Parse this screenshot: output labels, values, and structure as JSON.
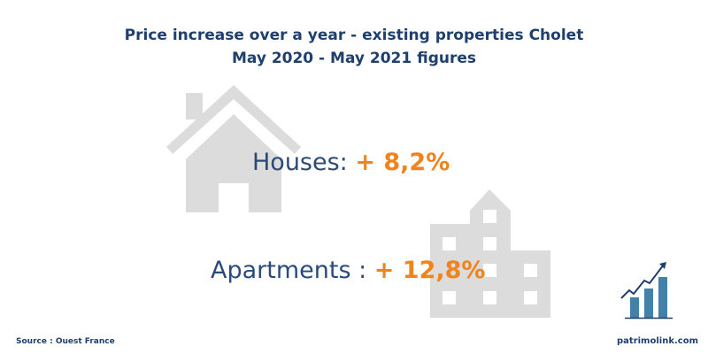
{
  "title": {
    "line1": "Price increase over a year - existing properties Cholet",
    "line2": "May 2020 - May 2021 figures"
  },
  "stats": [
    {
      "label": "Houses: ",
      "value": "+ 8,2%",
      "icon": "house-icon"
    },
    {
      "label": "Apartments : ",
      "value": "+ 12,8%",
      "icon": "apartment-building-icon"
    }
  ],
  "footer": {
    "source": "Source : Ouest France",
    "brand": "patrimolink.com",
    "brand_icon": "growth-chart-icon"
  },
  "colors": {
    "title": "#1f3f6e",
    "accent": "#f0841c",
    "icon_gray": "#dcdcdc",
    "chart_icon": "#4481a8"
  }
}
